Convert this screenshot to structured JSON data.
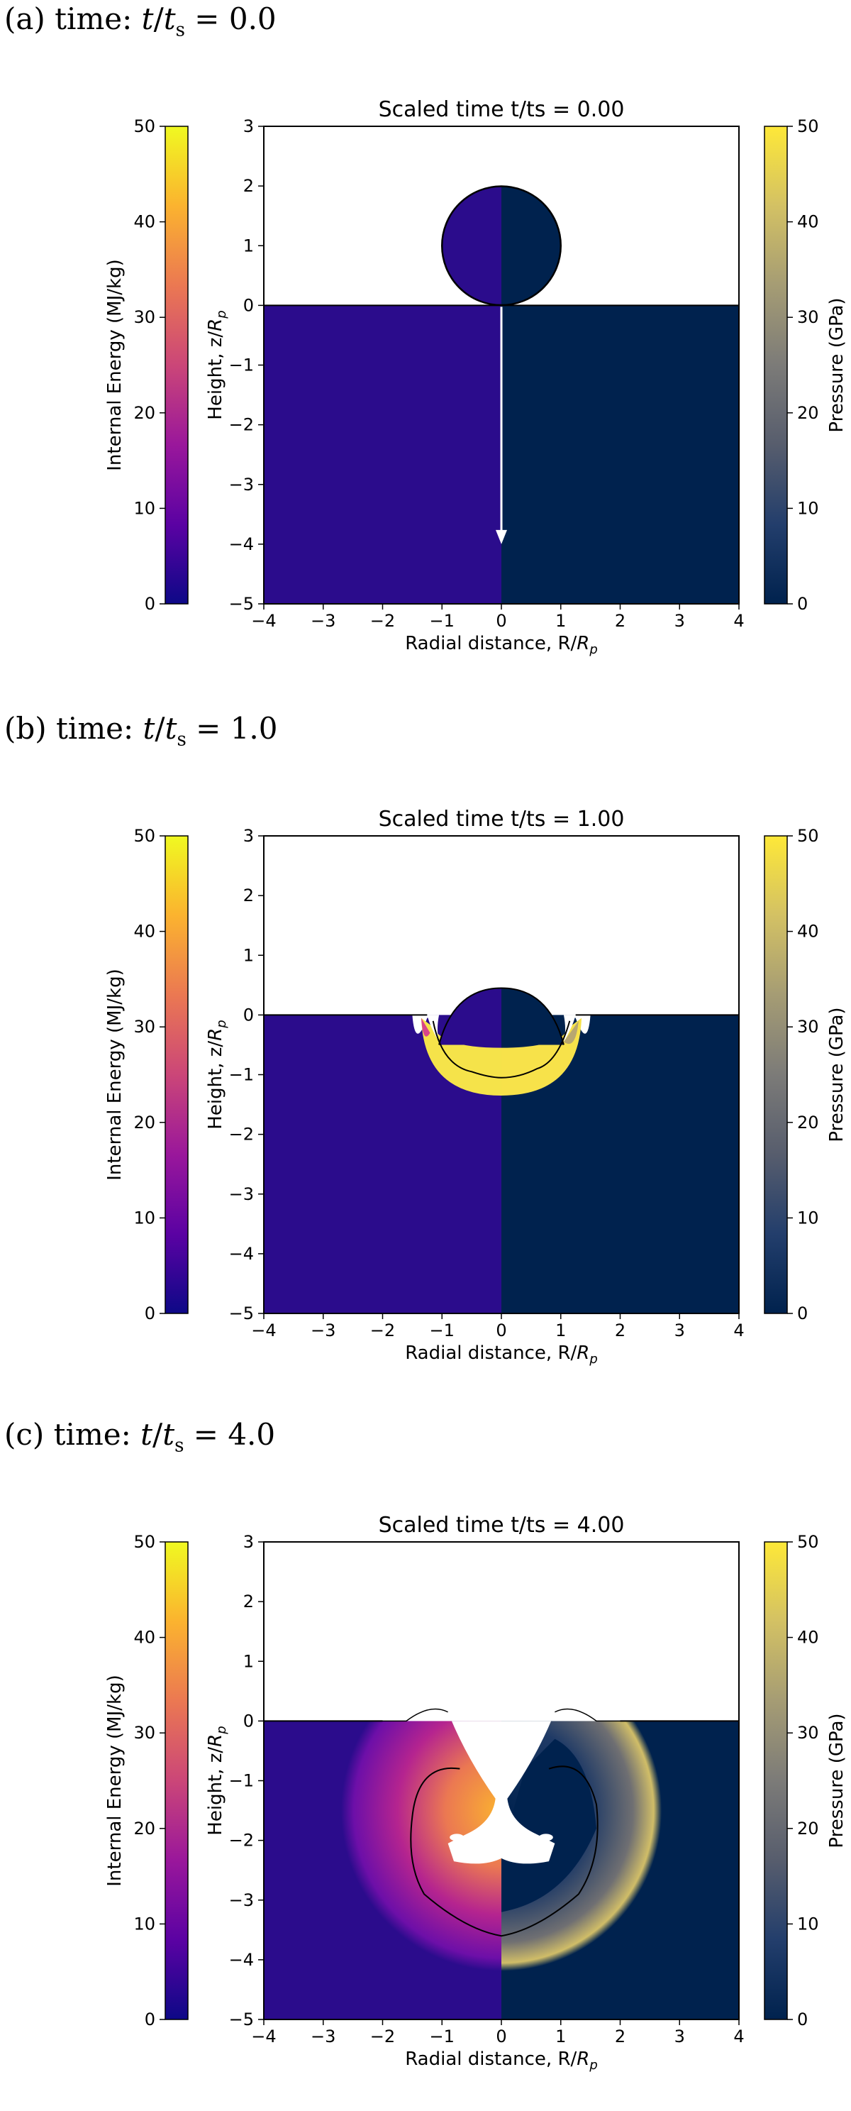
{
  "panels": [
    {
      "caption": {
        "label": "(a) time:",
        "var": "t",
        "sep": "/",
        "var2": "t",
        "sub": "s",
        "eq": " = 0.0"
      },
      "chart_data": {
        "type": "heatmap",
        "title": "Scaled time t/ts =  0.00",
        "xlabel": "Radial distance, R/R_p",
        "ylabel": "Height, z/R_p",
        "xlim": [
          -4,
          4
        ],
        "ylim": [
          -5,
          3
        ],
        "xticks": [
          "−4",
          "−3",
          "−2",
          "−1",
          "0",
          "1",
          "2",
          "3",
          "4"
        ],
        "yticks": [
          "3",
          "2",
          "1",
          "0",
          "−1",
          "−2",
          "−3",
          "−4",
          "−5"
        ],
        "left_colorbar": {
          "label": "Internal Energy (MJ/kg)",
          "range": [
            0,
            50
          ],
          "colormap": "plasma",
          "ticks": [
            "50",
            "40",
            "30",
            "20",
            "10",
            "0"
          ]
        },
        "right_colorbar": {
          "label": "Pressure (GPa)",
          "range": [
            0,
            50
          ],
          "colormap": "cividis",
          "ticks": [
            "50",
            "40",
            "30",
            "20",
            "10",
            "0"
          ]
        },
        "projectile": {
          "center_z": 1.0,
          "radius": 1.0
        },
        "arrow": {
          "from_z": 0,
          "to_z": -4.0,
          "color": "#ffffff"
        }
      }
    },
    {
      "caption": {
        "label": "(b) time:",
        "var": "t",
        "sep": "/",
        "var2": "t",
        "sub": "s",
        "eq": " = 1.0"
      },
      "chart_data": {
        "type": "heatmap",
        "title": "Scaled time t/ts =  1.00",
        "xlabel": "Radial distance, R/R_p",
        "ylabel": "Height, z/R_p",
        "xlim": [
          -4,
          4
        ],
        "ylim": [
          -5,
          3
        ],
        "xticks": [
          "−4",
          "−3",
          "−2",
          "−1",
          "0",
          "1",
          "2",
          "3",
          "4"
        ],
        "yticks": [
          "3",
          "2",
          "1",
          "0",
          "−1",
          "−2",
          "−3",
          "−4",
          "−5"
        ],
        "left_colorbar": {
          "label": "Internal Energy (MJ/kg)",
          "range": [
            0,
            50
          ],
          "colormap": "plasma",
          "ticks": [
            "50",
            "40",
            "30",
            "20",
            "10",
            "0"
          ]
        },
        "right_colorbar": {
          "label": "Pressure (GPa)",
          "range": [
            0,
            50
          ],
          "colormap": "cividis",
          "ticks": [
            "50",
            "40",
            "30",
            "20",
            "10",
            "0"
          ]
        },
        "shock_front": {
          "approx_depth": -1.3,
          "half_width": 1.3
        }
      }
    },
    {
      "caption": {
        "label": "(c) time:",
        "var": "t",
        "sep": "/",
        "var2": "t",
        "sub": "s",
        "eq": " = 4.0"
      },
      "chart_data": {
        "type": "heatmap",
        "title": "Scaled time t/ts =  4.00",
        "xlabel": "Radial distance, R/R_p",
        "ylabel": "Height, z/R_p",
        "xlim": [
          -4,
          4
        ],
        "ylim": [
          -5,
          3
        ],
        "xticks": [
          "−4",
          "−3",
          "−2",
          "−1",
          "0",
          "1",
          "2",
          "3",
          "4"
        ],
        "yticks": [
          "3",
          "2",
          "1",
          "0",
          "−1",
          "−2",
          "−3",
          "−4",
          "−5"
        ],
        "left_colorbar": {
          "label": "Internal Energy (MJ/kg)",
          "range": [
            0,
            50
          ],
          "colormap": "plasma",
          "ticks": [
            "50",
            "40",
            "30",
            "20",
            "10",
            "0"
          ]
        },
        "right_colorbar": {
          "label": "Pressure (GPa)",
          "range": [
            0,
            50
          ],
          "colormap": "cividis",
          "ticks": [
            "50",
            "40",
            "30",
            "20",
            "10",
            "0"
          ]
        },
        "shock_front": {
          "center_z": -1.5,
          "radius": 2.7
        }
      }
    }
  ],
  "colors": {
    "target_left": "#2b0c8c",
    "target_right": "#00224e",
    "outline": "#000000",
    "plasma_stops": [
      "#0d0887",
      "#5b02a3",
      "#9a179b",
      "#cb4678",
      "#eb7852",
      "#fbb32f",
      "#f0f921"
    ],
    "cividis_stops": [
      "#00224e",
      "#233e6c",
      "#575d6d",
      "#7c7b78",
      "#a59c74",
      "#d3c164",
      "#fee838"
    ]
  }
}
